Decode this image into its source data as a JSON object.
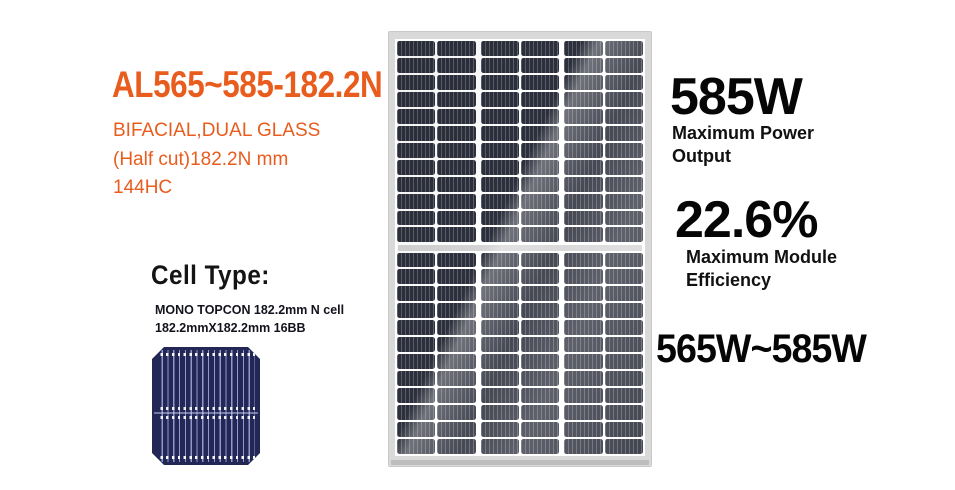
{
  "product": {
    "model": "AL565~585-182.2N",
    "features": [
      "BIFACIAL,DUAL GLASS",
      "(Half cut)182.2N mm",
      "144HC"
    ]
  },
  "cell_type": {
    "heading": "Cell Type:",
    "spec_line1": "MONO TOPCON 182.2mm N cell",
    "spec_line2": "182.2mmX182.2mm 16BB"
  },
  "specs": {
    "max_power": {
      "value": "585W",
      "label_line1": "Maximum Power",
      "label_line2": "Output"
    },
    "efficiency": {
      "value": "22.6%",
      "label_line1": "Maximum Module",
      "label_line2": "Efficiency"
    },
    "power_range": "565W~585W"
  },
  "panel": {
    "columns": 6,
    "rows_per_half": 12,
    "halves": 2,
    "total_half_cells": 144
  },
  "colors": {
    "accent_orange": "#E85C1E",
    "text_black": "#060606",
    "panel_cell_dark": "#2d2f3a",
    "panel_cell_stripe": "rgba(133,140,163,0.5)",
    "panel_frame_gray": "#d9d9d9",
    "wafer_navy": "#232755"
  }
}
